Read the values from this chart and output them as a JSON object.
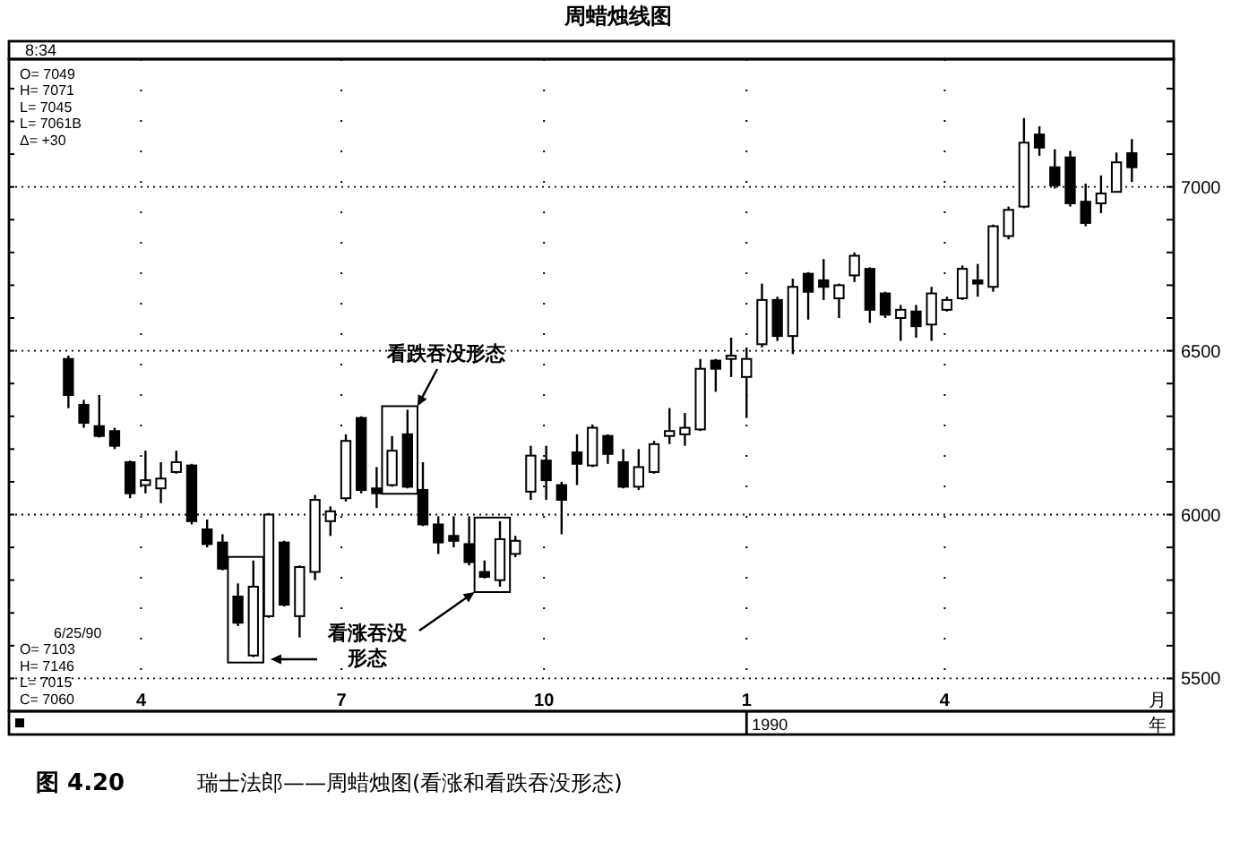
{
  "chart_data": {
    "type": "candlestick",
    "title": "周蜡烛线图",
    "xlabel": "月",
    "color": "#000000",
    "grid": true,
    "x": [
      "1989-02-27",
      "1989-03-06",
      "1989-03-13",
      "1989-03-20",
      "1989-03-27",
      "1989-04-03",
      "1989-04-10",
      "1989-04-17",
      "1989-04-24",
      "1989-05-01",
      "1989-05-08",
      "1989-05-15",
      "1989-05-22",
      "1989-05-29",
      "1989-06-05",
      "1989-06-12",
      "1989-06-19",
      "1989-06-26",
      "1989-07-03",
      "1989-07-10",
      "1989-07-17",
      "1989-07-24",
      "1989-07-31",
      "1989-08-07",
      "1989-08-14",
      "1989-08-21",
      "1989-08-28",
      "1989-09-04",
      "1989-09-11",
      "1989-09-18",
      "1989-09-25",
      "1989-10-02",
      "1989-10-09",
      "1989-10-16",
      "1989-10-23",
      "1989-10-30",
      "1989-11-06",
      "1989-11-13",
      "1989-11-20",
      "1989-11-27",
      "1989-12-04",
      "1989-12-11",
      "1989-12-18",
      "1989-12-25",
      "1990-01-01",
      "1990-01-08",
      "1990-01-15",
      "1990-01-22",
      "1990-01-29",
      "1990-02-05",
      "1990-02-12",
      "1990-02-19",
      "1990-02-26",
      "1990-03-05",
      "1990-03-12",
      "1990-03-19",
      "1990-03-26",
      "1990-04-02",
      "1990-04-09",
      "1990-04-16",
      "1990-04-23",
      "1990-04-30",
      "1990-05-07",
      "1990-05-14",
      "1990-05-21",
      "1990-05-28",
      "1990-06-04",
      "1990-06-11",
      "1990-06-18",
      "1990-06-25"
    ],
    "ohlc": [
      [
        6475,
        6485,
        6325,
        6365
      ],
      [
        6335,
        6350,
        6265,
        6280
      ],
      [
        6270,
        6365,
        6235,
        6240
      ],
      [
        6255,
        6265,
        6200,
        6210
      ],
      [
        6160,
        6165,
        6050,
        6065
      ],
      [
        6090,
        6195,
        6065,
        6105
      ],
      [
        6080,
        6160,
        6035,
        6110
      ],
      [
        6130,
        6195,
        6125,
        6160
      ],
      [
        6150,
        6155,
        5970,
        5980
      ],
      [
        5955,
        5985,
        5900,
        5910
      ],
      [
        5915,
        5940,
        5830,
        5835
      ],
      [
        5750,
        5790,
        5660,
        5670
      ],
      [
        5570,
        5860,
        5565,
        5780
      ],
      [
        5690,
        6005,
        5685,
        6000
      ],
      [
        5915,
        5920,
        5720,
        5725
      ],
      [
        5690,
        5845,
        5625,
        5840
      ],
      [
        5825,
        6060,
        5800,
        6045
      ],
      [
        5980,
        6025,
        5935,
        6010
      ],
      [
        6050,
        6245,
        6040,
        6225
      ],
      [
        6295,
        6300,
        6065,
        6075
      ],
      [
        6080,
        6145,
        6020,
        6065
      ],
      [
        6090,
        6240,
        6085,
        6195
      ],
      [
        6245,
        6320,
        6080,
        6085
      ],
      [
        6075,
        6160,
        5965,
        5970
      ],
      [
        5970,
        5995,
        5880,
        5915
      ],
      [
        5935,
        5995,
        5900,
        5920
      ],
      [
        5910,
        5995,
        5845,
        5855
      ],
      [
        5825,
        5860,
        5805,
        5810
      ],
      [
        5800,
        5980,
        5780,
        5925
      ],
      [
        5880,
        5935,
        5870,
        5920
      ],
      [
        6070,
        6210,
        6045,
        6180
      ],
      [
        6165,
        6210,
        6045,
        6105
      ],
      [
        6090,
        6100,
        5940,
        6045
      ],
      [
        6190,
        6245,
        6090,
        6155
      ],
      [
        6150,
        6275,
        6145,
        6265
      ],
      [
        6240,
        6245,
        6155,
        6185
      ],
      [
        6160,
        6200,
        6080,
        6085
      ],
      [
        6085,
        6200,
        6075,
        6145
      ],
      [
        6130,
        6225,
        6125,
        6215
      ],
      [
        6240,
        6325,
        6215,
        6255
      ],
      [
        6245,
        6310,
        6210,
        6265
      ],
      [
        6260,
        6475,
        6255,
        6445
      ],
      [
        6470,
        6475,
        6375,
        6445
      ],
      [
        6475,
        6540,
        6420,
        6485
      ],
      [
        6420,
        6510,
        6295,
        6475
      ],
      [
        6520,
        6705,
        6510,
        6655
      ],
      [
        6655,
        6665,
        6530,
        6545
      ],
      [
        6545,
        6720,
        6490,
        6695
      ],
      [
        6735,
        6740,
        6595,
        6680
      ],
      [
        6715,
        6780,
        6655,
        6695
      ],
      [
        6660,
        6705,
        6600,
        6700
      ],
      [
        6730,
        6800,
        6710,
        6790
      ],
      [
        6750,
        6755,
        6585,
        6625
      ],
      [
        6675,
        6680,
        6600,
        6610
      ],
      [
        6600,
        6640,
        6530,
        6625
      ],
      [
        6620,
        6640,
        6540,
        6575
      ],
      [
        6580,
        6695,
        6530,
        6675
      ],
      [
        6625,
        6665,
        6620,
        6655
      ],
      [
        6660,
        6760,
        6655,
        6750
      ],
      [
        6715,
        6765,
        6665,
        6705
      ],
      [
        6695,
        6885,
        6680,
        6880
      ],
      [
        6850,
        6940,
        6840,
        6930
      ],
      [
        6940,
        7210,
        6935,
        7135
      ],
      [
        7160,
        7185,
        7095,
        7120
      ],
      [
        7060,
        7115,
        6995,
        7005
      ],
      [
        7090,
        7110,
        6940,
        6950
      ],
      [
        6955,
        7010,
        6880,
        6890
      ],
      [
        6950,
        7035,
        6920,
        6980
      ],
      [
        6985,
        7105,
        6985,
        7075
      ],
      [
        7103,
        7146,
        7015,
        7060
      ]
    ],
    "xlim": [
      "1989-01-31",
      "1990-07-14"
    ],
    "ylim": [
      5400,
      7390
    ],
    "xticks": [
      {
        "value": "1989-04-01",
        "label": "4"
      },
      {
        "value": "1989-07-01",
        "label": "7"
      },
      {
        "value": "1989-10-01",
        "label": "10"
      },
      {
        "value": "1990-01-01",
        "label": "1"
      },
      {
        "value": "1990-04-01",
        "label": "4"
      }
    ],
    "yticks": [
      5500,
      {
        "value": 5600,
        "label": null
      },
      {
        "value": 5700,
        "label": null
      },
      {
        "value": 5800,
        "label": null
      },
      {
        "value": 5900,
        "label": null
      },
      6000,
      {
        "value": 6100,
        "label": null
      },
      {
        "value": 6200,
        "label": null
      },
      {
        "value": 6300,
        "label": null
      },
      {
        "value": 6400,
        "label": null
      },
      6500,
      {
        "value": 6600,
        "label": null
      },
      {
        "value": 6700,
        "label": null
      },
      {
        "value": 6800,
        "label": null
      },
      {
        "value": 6900,
        "label": null
      },
      7000,
      {
        "value": 7100,
        "label": null
      },
      {
        "value": 7200,
        "label": null
      },
      {
        "value": 7300,
        "label": null
      }
    ],
    "annotations": [
      "8:34",
      "O= 7049",
      "H= 7071",
      "L= 7045",
      "L= 7061B",
      "Δ= +30",
      "6/25/90",
      "O= 7103",
      "H= 7146",
      "L= 7015",
      "C= 7060",
      "看跌吞没形态",
      "看涨吞没形态",
      "1990",
      "年",
      "图 4.20",
      "瑞士法郎——周蜡烛图(看涨和看跌吞没形态)"
    ]
  }
}
